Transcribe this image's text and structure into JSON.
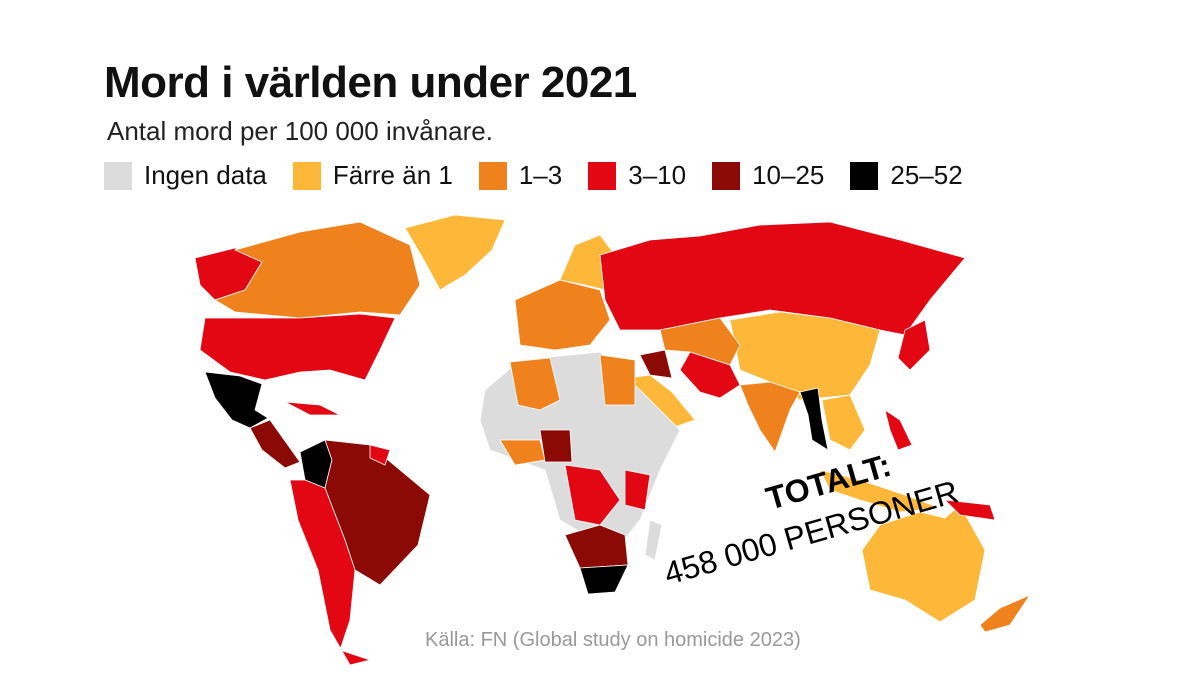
{
  "header": {
    "title": "Mord i världen under 2021",
    "subtitle": "Antal mord per 100 000 invånare."
  },
  "legend": [
    {
      "label": "Ingen data",
      "color": "#dcdcdc"
    },
    {
      "label": "Färre än 1",
      "color": "#fdb83a"
    },
    {
      "label": "1–3",
      "color": "#f0821e"
    },
    {
      "label": "3–10",
      "color": "#e30613"
    },
    {
      "label": "10–25",
      "color": "#8b0a06"
    },
    {
      "label": "25–52",
      "color": "#000000"
    }
  ],
  "annotation": {
    "line1": "TOTALT:",
    "line2": "458 000 PERSONER"
  },
  "source": "Källa: FN (Global study on homicide 2023)"
}
